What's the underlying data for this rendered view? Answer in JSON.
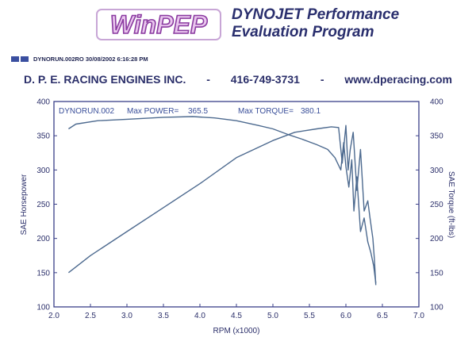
{
  "header": {
    "logo_text": "WinPEP",
    "program_line1": "DYNOJET Performance",
    "program_line2": "Evaluation Program",
    "file_info": "DYNORUN.002RO  30/08/2002 6:16:28 PM"
  },
  "banner": {
    "company": "D. P. E. RACING ENGINES INC.",
    "sep1": "-",
    "phone": "416-749-3731",
    "sep2": "-",
    "website": "www.dperacing.com"
  },
  "colors": {
    "plot_border": "#3a3f88",
    "curve": "#4d6a8f",
    "text": "#2b2f6a"
  },
  "chart_data": {
    "type": "line",
    "run_label": "DYNORUN.002",
    "max_power_label": "Max POWER=",
    "max_power_value": "365.5",
    "max_torque_label": "Max TORQUE=",
    "max_torque_value": "380.1",
    "xlabel": "RPM (x1000)",
    "ylabel_left": "SAE Horsepower",
    "ylabel_right": "SAE Torque (ft-lbs)",
    "xlim": [
      2.0,
      7.0
    ],
    "ylim": [
      100,
      400
    ],
    "x_ticks": [
      "2.0",
      "2.5",
      "3.0",
      "3.5",
      "4.0",
      "4.5",
      "5.0",
      "5.5",
      "6.0",
      "6.5",
      "7.0"
    ],
    "y_ticks": [
      "100",
      "150",
      "200",
      "250",
      "300",
      "350",
      "400"
    ],
    "grid": false,
    "series": [
      {
        "axis": "left",
        "x": [
          2.2,
          2.5,
          3.0,
          3.5,
          4.0,
          4.5,
          5.0,
          5.3,
          5.6,
          5.8,
          5.9,
          5.95,
          6.0,
          6.03,
          6.06,
          6.1,
          6.15,
          6.2,
          6.25,
          6.3,
          6.33,
          6.37,
          6.39,
          6.41
        ],
        "y": [
          150,
          175,
          210,
          245,
          280,
          318,
          343,
          355,
          360,
          363,
          362,
          310,
          365,
          300,
          330,
          355,
          270,
          330,
          240,
          255,
          230,
          200,
          170,
          132
        ]
      },
      {
        "axis": "right",
        "x": [
          2.2,
          2.3,
          2.6,
          3.0,
          3.5,
          3.9,
          4.2,
          4.5,
          4.8,
          5.0,
          5.2,
          5.4,
          5.6,
          5.75,
          5.85,
          5.93,
          5.97,
          6.0,
          6.04,
          6.08,
          6.11,
          6.15,
          6.2,
          6.25,
          6.3,
          6.34,
          6.38,
          6.41
        ],
        "y": [
          360,
          367,
          372,
          374,
          377,
          378,
          376,
          372,
          365,
          360,
          352,
          345,
          337,
          330,
          318,
          300,
          340,
          305,
          275,
          315,
          240,
          290,
          210,
          230,
          195,
          180,
          160,
          135
        ]
      }
    ]
  }
}
